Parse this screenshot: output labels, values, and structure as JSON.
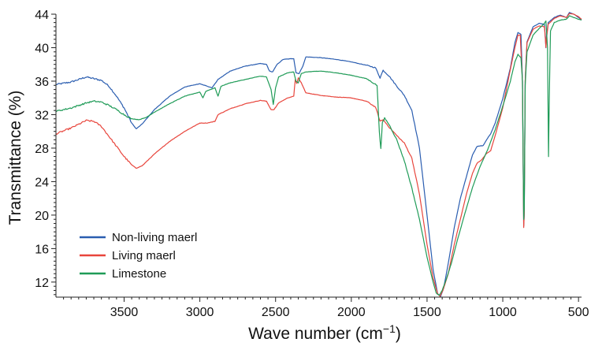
{
  "chart_data": {
    "type": "line",
    "xlabel": "Wave number (cm",
    "xlabel_sup": "−1",
    "xlabel_close": ")",
    "ylabel": "Transmittance (%)",
    "xlim": [
      3950,
      480
    ],
    "ylim": [
      10.2,
      44
    ],
    "x_reversed": true,
    "x_ticks": [
      3500,
      3000,
      2500,
      2000,
      1500,
      1000,
      500
    ],
    "y_ticks": [
      12,
      16,
      20,
      24,
      28,
      32,
      36,
      40,
      44
    ],
    "grid": false,
    "legend_position": "bottom-left",
    "series": [
      {
        "name": "Non-living maerl",
        "color": "#2a5db0",
        "points": [
          [
            3950,
            35.6
          ],
          [
            3850,
            35.9
          ],
          [
            3750,
            36.5
          ],
          [
            3650,
            36.1
          ],
          [
            3600,
            35.4
          ],
          [
            3550,
            34.2
          ],
          [
            3500,
            32.8
          ],
          [
            3450,
            31.0
          ],
          [
            3420,
            30.3
          ],
          [
            3380,
            30.9
          ],
          [
            3300,
            32.6
          ],
          [
            3200,
            34.2
          ],
          [
            3100,
            35.3
          ],
          [
            3000,
            35.7
          ],
          [
            2920,
            35.2
          ],
          [
            2880,
            36.2
          ],
          [
            2800,
            37.2
          ],
          [
            2700,
            37.8
          ],
          [
            2600,
            38.1
          ],
          [
            2560,
            38.0
          ],
          [
            2540,
            37.2
          ],
          [
            2520,
            37.1
          ],
          [
            2490,
            38.0
          ],
          [
            2450,
            38.6
          ],
          [
            2380,
            38.7
          ],
          [
            2365,
            37.0
          ],
          [
            2345,
            36.9
          ],
          [
            2320,
            37.8
          ],
          [
            2300,
            38.9
          ],
          [
            2200,
            38.8
          ],
          [
            2100,
            38.6
          ],
          [
            2000,
            38.3
          ],
          [
            1900,
            37.9
          ],
          [
            1840,
            37.6
          ],
          [
            1810,
            36.4
          ],
          [
            1790,
            37.3
          ],
          [
            1750,
            36.6
          ],
          [
            1700,
            35.4
          ],
          [
            1650,
            34.3
          ],
          [
            1600,
            32.5
          ],
          [
            1550,
            28.0
          ],
          [
            1500,
            20.0
          ],
          [
            1460,
            13.5
          ],
          [
            1430,
            10.6
          ],
          [
            1410,
            10.3
          ],
          [
            1390,
            11.3
          ],
          [
            1360,
            14.2
          ],
          [
            1320,
            18.5
          ],
          [
            1280,
            22.0
          ],
          [
            1240,
            24.6
          ],
          [
            1200,
            27.2
          ],
          [
            1170,
            28.2
          ],
          [
            1130,
            28.3
          ],
          [
            1100,
            29.2
          ],
          [
            1080,
            29.7
          ],
          [
            1050,
            31.0
          ],
          [
            1000,
            33.9
          ],
          [
            950,
            37.6
          ],
          [
            920,
            40.6
          ],
          [
            900,
            41.8
          ],
          [
            880,
            41.6
          ],
          [
            870,
            36.0
          ],
          [
            862,
            18.7
          ],
          [
            858,
            20.0
          ],
          [
            852,
            36.0
          ],
          [
            840,
            40.7
          ],
          [
            800,
            42.5
          ],
          [
            760,
            42.9
          ],
          [
            725,
            42.8
          ],
          [
            715,
            40.0
          ],
          [
            712,
            41.3
          ],
          [
            700,
            43.0
          ],
          [
            660,
            43.6
          ],
          [
            620,
            43.9
          ],
          [
            580,
            43.6
          ],
          [
            560,
            44.2
          ],
          [
            530,
            44.0
          ],
          [
            500,
            43.6
          ],
          [
            480,
            43.3
          ]
        ]
      },
      {
        "name": "Living maerl",
        "color": "#e8453c",
        "points": [
          [
            3950,
            29.7
          ],
          [
            3850,
            30.4
          ],
          [
            3750,
            31.3
          ],
          [
            3700,
            31.2
          ],
          [
            3650,
            30.6
          ],
          [
            3600,
            29.4
          ],
          [
            3550,
            28.2
          ],
          [
            3500,
            27.0
          ],
          [
            3450,
            26.0
          ],
          [
            3420,
            25.6
          ],
          [
            3380,
            25.9
          ],
          [
            3300,
            27.3
          ],
          [
            3200,
            28.8
          ],
          [
            3100,
            30.0
          ],
          [
            3000,
            31.0
          ],
          [
            2950,
            31.0
          ],
          [
            2900,
            31.2
          ],
          [
            2880,
            32.0
          ],
          [
            2800,
            32.7
          ],
          [
            2700,
            33.3
          ],
          [
            2600,
            33.7
          ],
          [
            2560,
            33.6
          ],
          [
            2530,
            32.6
          ],
          [
            2510,
            32.6
          ],
          [
            2480,
            33.4
          ],
          [
            2420,
            34.0
          ],
          [
            2380,
            34.2
          ],
          [
            2370,
            36.2
          ],
          [
            2360,
            35.7
          ],
          [
            2350,
            36.4
          ],
          [
            2330,
            35.8
          ],
          [
            2300,
            34.6
          ],
          [
            2200,
            34.3
          ],
          [
            2100,
            34.1
          ],
          [
            2000,
            34.0
          ],
          [
            1900,
            33.6
          ],
          [
            1840,
            32.9
          ],
          [
            1810,
            31.2
          ],
          [
            1790,
            31.4
          ],
          [
            1750,
            30.5
          ],
          [
            1700,
            29.5
          ],
          [
            1650,
            28.6
          ],
          [
            1600,
            26.8
          ],
          [
            1550,
            22.5
          ],
          [
            1500,
            16.5
          ],
          [
            1460,
            12.5
          ],
          [
            1430,
            10.6
          ],
          [
            1415,
            10.3
          ],
          [
            1395,
            11.0
          ],
          [
            1360,
            13.0
          ],
          [
            1320,
            16.5
          ],
          [
            1280,
            19.5
          ],
          [
            1240,
            22.5
          ],
          [
            1200,
            25.0
          ],
          [
            1170,
            26.2
          ],
          [
            1140,
            26.6
          ],
          [
            1110,
            27.3
          ],
          [
            1080,
            27.7
          ],
          [
            1050,
            29.5
          ],
          [
            1000,
            32.8
          ],
          [
            960,
            36.5
          ],
          [
            920,
            40.0
          ],
          [
            900,
            41.5
          ],
          [
            885,
            41.5
          ],
          [
            870,
            36.0
          ],
          [
            862,
            18.5
          ],
          [
            858,
            20.2
          ],
          [
            852,
            36.0
          ],
          [
            840,
            40.6
          ],
          [
            800,
            42.2
          ],
          [
            760,
            42.6
          ],
          [
            725,
            42.5
          ],
          [
            715,
            40.0
          ],
          [
            712,
            41.0
          ],
          [
            700,
            42.8
          ],
          [
            660,
            43.5
          ],
          [
            620,
            43.8
          ],
          [
            580,
            43.6
          ],
          [
            560,
            44.1
          ],
          [
            530,
            44.0
          ],
          [
            500,
            43.7
          ],
          [
            480,
            43.4
          ]
        ]
      },
      {
        "name": "Limestone",
        "color": "#1f9b57",
        "points": [
          [
            3950,
            32.4
          ],
          [
            3850,
            32.8
          ],
          [
            3750,
            33.4
          ],
          [
            3700,
            33.6
          ],
          [
            3650,
            33.5
          ],
          [
            3600,
            33.1
          ],
          [
            3550,
            32.6
          ],
          [
            3500,
            32.0
          ],
          [
            3450,
            31.5
          ],
          [
            3400,
            31.4
          ],
          [
            3350,
            31.7
          ],
          [
            3300,
            32.3
          ],
          [
            3200,
            33.3
          ],
          [
            3100,
            34.2
          ],
          [
            3000,
            34.7
          ],
          [
            2980,
            34.0
          ],
          [
            2960,
            34.8
          ],
          [
            2900,
            35.2
          ],
          [
            2880,
            34.2
          ],
          [
            2860,
            35.4
          ],
          [
            2800,
            35.8
          ],
          [
            2700,
            36.2
          ],
          [
            2600,
            36.6
          ],
          [
            2560,
            36.5
          ],
          [
            2530,
            35.0
          ],
          [
            2515,
            33.2
          ],
          [
            2500,
            35.2
          ],
          [
            2480,
            36.5
          ],
          [
            2420,
            37.0
          ],
          [
            2380,
            37.1
          ],
          [
            2365,
            36.0
          ],
          [
            2350,
            35.8
          ],
          [
            2330,
            36.9
          ],
          [
            2300,
            37.1
          ],
          [
            2200,
            37.2
          ],
          [
            2100,
            37.0
          ],
          [
            2000,
            36.7
          ],
          [
            1900,
            36.3
          ],
          [
            1830,
            35.5
          ],
          [
            1815,
            30.0
          ],
          [
            1805,
            27.9
          ],
          [
            1795,
            31.0
          ],
          [
            1780,
            31.6
          ],
          [
            1750,
            30.8
          ],
          [
            1700,
            29.0
          ],
          [
            1650,
            26.5
          ],
          [
            1600,
            23.2
          ],
          [
            1550,
            19.5
          ],
          [
            1500,
            15.0
          ],
          [
            1460,
            12.0
          ],
          [
            1440,
            10.7
          ],
          [
            1420,
            10.4
          ],
          [
            1400,
            11.0
          ],
          [
            1370,
            12.5
          ],
          [
            1340,
            14.2
          ],
          [
            1300,
            17.0
          ],
          [
            1250,
            20.2
          ],
          [
            1200,
            23.3
          ],
          [
            1150,
            25.8
          ],
          [
            1100,
            27.8
          ],
          [
            1050,
            30.2
          ],
          [
            1000,
            33.0
          ],
          [
            950,
            36.0
          ],
          [
            920,
            38.3
          ],
          [
            900,
            39.2
          ],
          [
            880,
            38.8
          ],
          [
            870,
            36.0
          ],
          [
            862,
            19.5
          ],
          [
            858,
            20.8
          ],
          [
            852,
            35.5
          ],
          [
            840,
            39.5
          ],
          [
            800,
            41.5
          ],
          [
            760,
            42.3
          ],
          [
            730,
            42.8
          ],
          [
            715,
            43.2
          ],
          [
            705,
            40.0
          ],
          [
            698,
            27.0
          ],
          [
            694,
            33.0
          ],
          [
            685,
            42.0
          ],
          [
            660,
            43.0
          ],
          [
            620,
            43.3
          ],
          [
            580,
            43.4
          ],
          [
            560,
            43.8
          ],
          [
            530,
            43.6
          ],
          [
            500,
            43.4
          ],
          [
            480,
            43.3
          ]
        ]
      }
    ]
  }
}
